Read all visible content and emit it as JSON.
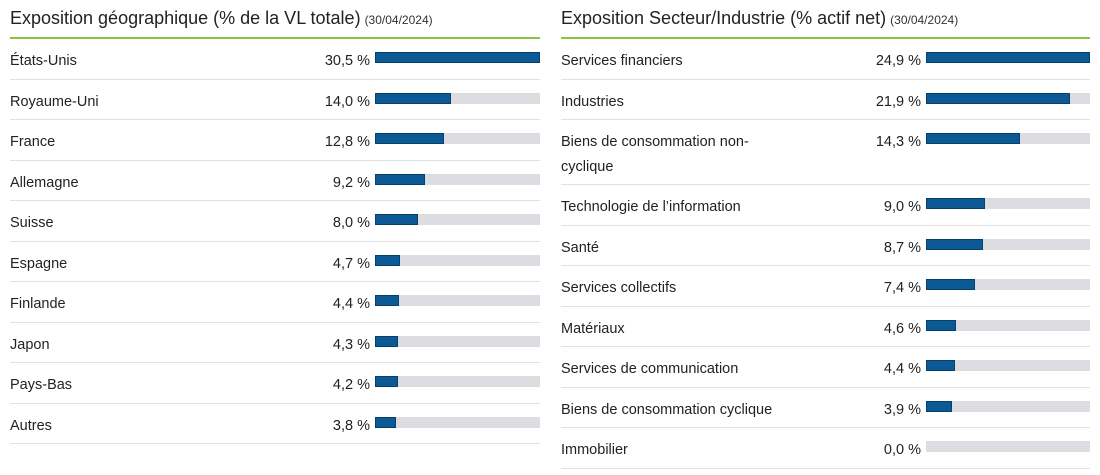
{
  "panels": {
    "geo": {
      "title": "Exposition géographique (% de la VL totale)",
      "date": "(30/04/2024)"
    },
    "sector": {
      "title": "Exposition Secteur/Industrie (% actif net)",
      "date": "(30/04/2024)"
    }
  },
  "colors": {
    "bar_fill": "#0b5a95",
    "bar_track": "#dcdde0",
    "header_rule": "#8cc43f"
  },
  "chart_data": [
    {
      "type": "bar",
      "orientation": "horizontal",
      "title": "Exposition géographique (% de la VL totale)",
      "date": "(30/04/2024)",
      "unit": "%",
      "scale_max": 30.5,
      "categories": [
        "États-Unis",
        "Royaume-Uni",
        "France",
        "Allemagne",
        "Suisse",
        "Espagne",
        "Finlande",
        "Japon",
        "Pays-Bas",
        "Autres"
      ],
      "values": [
        30.5,
        14.0,
        12.8,
        9.2,
        8.0,
        4.7,
        4.4,
        4.3,
        4.2,
        3.8
      ],
      "value_labels": [
        "30,5 %",
        "14,0 %",
        "12,8 %",
        "9,2 %",
        "8,0 %",
        "4,7 %",
        "4,4 %",
        "4,3 %",
        "4,2 %",
        "3,8 %"
      ]
    },
    {
      "type": "bar",
      "orientation": "horizontal",
      "title": "Exposition Secteur/Industrie (% actif net)",
      "date": "(30/04/2024)",
      "unit": "%",
      "scale_max": 24.9,
      "categories": [
        "Services financiers",
        "Industries",
        "Biens de consommation non-cyclique",
        "Technologie de l’information",
        "Santé",
        "Services collectifs",
        "Matériaux",
        "Services de communication",
        "Biens de consommation cyclique",
        "Immobilier"
      ],
      "values": [
        24.9,
        21.9,
        14.3,
        9.0,
        8.7,
        7.4,
        4.6,
        4.4,
        3.9,
        0.0
      ],
      "value_labels": [
        "24,9 %",
        "21,9 %",
        "14,3 %",
        "9,0 %",
        "8,7 %",
        "7,4 %",
        "4,6 %",
        "4,4 %",
        "3,9 %",
        "0,0 %"
      ]
    }
  ]
}
